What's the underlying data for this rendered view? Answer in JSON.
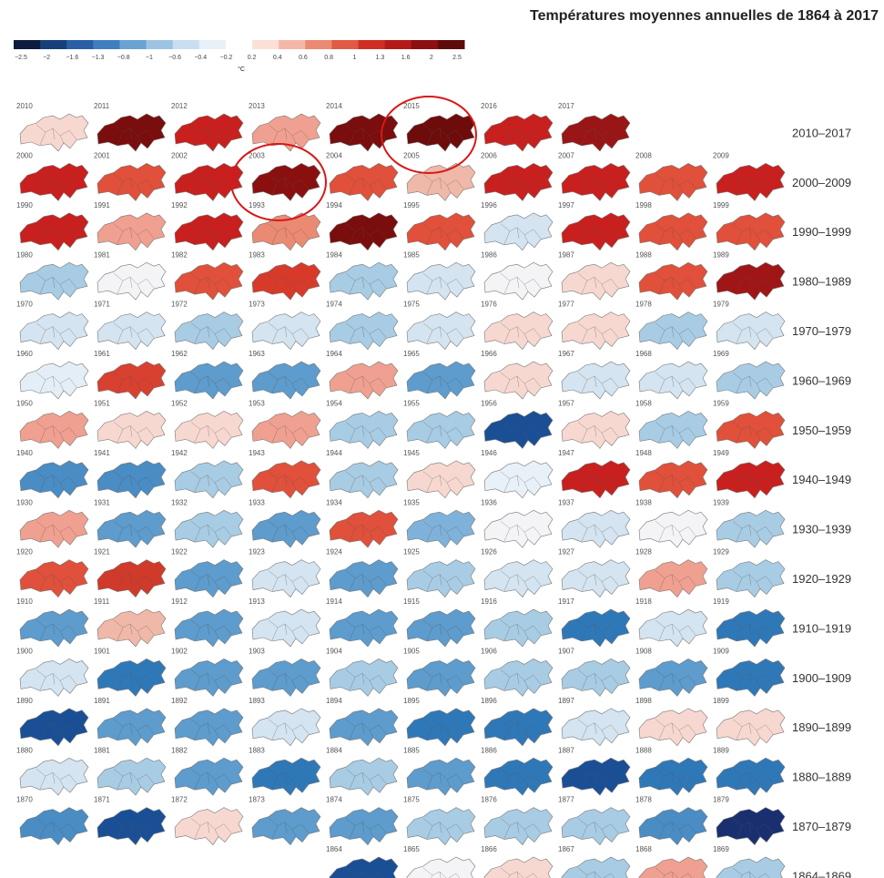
{
  "title": "Températures moyennes annuelles de 1864 à 2017",
  "legend": {
    "labels": [
      "−2.5",
      "−2",
      "−1.6",
      "−1.3",
      "−0.8",
      "−1",
      "−0.6",
      "−0.4",
      "−0.2",
      "0.2",
      "0.4",
      "0.6",
      "0.8",
      "1",
      "1.3",
      "1.6",
      "2",
      "2.5"
    ],
    "colors": [
      "#0d1b3e",
      "#173f7a",
      "#2a5fa6",
      "#3f7fc0",
      "#6aa3d2",
      "#9cc4e2",
      "#c9def0",
      "#e8f0f8",
      "#ffffff",
      "#fbe0d8",
      "#f4b8a8",
      "#eb8a73",
      "#e05a45",
      "#cf2e25",
      "#b51a1a",
      "#8c1010",
      "#5e0a0a"
    ],
    "unit": "°C"
  },
  "rows": [
    {
      "label": "2010–2017",
      "years": [
        {
          "year": "2010",
          "color": "#f7d8d0"
        },
        {
          "year": "2011",
          "color": "#7a0d0d"
        },
        {
          "year": "2012",
          "color": "#c8201e"
        },
        {
          "year": "2013",
          "color": "#f0a090"
        },
        {
          "year": "2014",
          "color": "#7a0d0d"
        },
        {
          "year": "2015",
          "color": "#6e0b0b"
        },
        {
          "year": "2016",
          "color": "#c8201e"
        },
        {
          "year": "2017",
          "color": "#9a1515"
        }
      ]
    },
    {
      "label": "2000–2009",
      "years": [
        {
          "year": "2000",
          "color": "#c8201e"
        },
        {
          "year": "2001",
          "color": "#e0503a"
        },
        {
          "year": "2002",
          "color": "#c8201e"
        },
        {
          "year": "2003",
          "color": "#8a1010"
        },
        {
          "year": "2004",
          "color": "#e0503a"
        },
        {
          "year": "2005",
          "color": "#f0b8a8"
        },
        {
          "year": "2006",
          "color": "#c8201e"
        },
        {
          "year": "2007",
          "color": "#c8201e"
        },
        {
          "year": "2008",
          "color": "#e0503a"
        },
        {
          "year": "2009",
          "color": "#c8201e"
        }
      ]
    },
    {
      "label": "1990–1999",
      "years": [
        {
          "year": "1990",
          "color": "#c8201e"
        },
        {
          "year": "1991",
          "color": "#f0a090"
        },
        {
          "year": "1992",
          "color": "#c8201e"
        },
        {
          "year": "1993",
          "color": "#eb8a73"
        },
        {
          "year": "1994",
          "color": "#7a0d0d"
        },
        {
          "year": "1995",
          "color": "#e0503a"
        },
        {
          "year": "1996",
          "color": "#d4e4f0"
        },
        {
          "year": "1997",
          "color": "#c8201e"
        },
        {
          "year": "1998",
          "color": "#e0503a"
        },
        {
          "year": "1999",
          "color": "#e0503a"
        }
      ]
    },
    {
      "label": "1980–1989",
      "years": [
        {
          "year": "1980",
          "color": "#a8cce4"
        },
        {
          "year": "1981",
          "color": "#f4f4f6"
        },
        {
          "year": "1982",
          "color": "#e0503a"
        },
        {
          "year": "1983",
          "color": "#d83a2a"
        },
        {
          "year": "1984",
          "color": "#a8cce4"
        },
        {
          "year": "1985",
          "color": "#d4e4f0"
        },
        {
          "year": "1986",
          "color": "#f4f4f6"
        },
        {
          "year": "1987",
          "color": "#f7d8d0"
        },
        {
          "year": "1988",
          "color": "#e0503a"
        },
        {
          "year": "1989",
          "color": "#a01515"
        }
      ]
    },
    {
      "label": "1970–1979",
      "years": [
        {
          "year": "1970",
          "color": "#d4e4f0"
        },
        {
          "year": "1971",
          "color": "#d4e4f0"
        },
        {
          "year": "1972",
          "color": "#a8cce4"
        },
        {
          "year": "1973",
          "color": "#d4e4f0"
        },
        {
          "year": "1974",
          "color": "#a8cce4"
        },
        {
          "year": "1975",
          "color": "#d4e4f0"
        },
        {
          "year": "1976",
          "color": "#f7d8d0"
        },
        {
          "year": "1977",
          "color": "#f7d8d0"
        },
        {
          "year": "1978",
          "color": "#a8cce4"
        },
        {
          "year": "1979",
          "color": "#d4e4f0"
        }
      ]
    },
    {
      "label": "1960–1969",
      "years": [
        {
          "year": "1960",
          "color": "#e4eef6"
        },
        {
          "year": "1961",
          "color": "#d84030"
        },
        {
          "year": "1962",
          "color": "#5d9ccc"
        },
        {
          "year": "1963",
          "color": "#5d9ccc"
        },
        {
          "year": "1964",
          "color": "#f0a090"
        },
        {
          "year": "1965",
          "color": "#5d9ccc"
        },
        {
          "year": "1966",
          "color": "#f7d8d0"
        },
        {
          "year": "1967",
          "color": "#d4e4f0"
        },
        {
          "year": "1968",
          "color": "#d4e4f0"
        },
        {
          "year": "1969",
          "color": "#a8cce4"
        }
      ]
    },
    {
      "label": "1950–1959",
      "years": [
        {
          "year": "1950",
          "color": "#f0a090"
        },
        {
          "year": "1951",
          "color": "#f7d8d0"
        },
        {
          "year": "1952",
          "color": "#f7d8d0"
        },
        {
          "year": "1953",
          "color": "#f0a090"
        },
        {
          "year": "1954",
          "color": "#a8cce4"
        },
        {
          "year": "1955",
          "color": "#a8cce4"
        },
        {
          "year": "1956",
          "color": "#1a4f96"
        },
        {
          "year": "1957",
          "color": "#f7d8d0"
        },
        {
          "year": "1958",
          "color": "#a8cce4"
        },
        {
          "year": "1959",
          "color": "#e0503a"
        }
      ]
    },
    {
      "label": "1940–1949",
      "years": [
        {
          "year": "1940",
          "color": "#4a8cc4"
        },
        {
          "year": "1941",
          "color": "#4a8cc4"
        },
        {
          "year": "1942",
          "color": "#a8cce4"
        },
        {
          "year": "1943",
          "color": "#e0503a"
        },
        {
          "year": "1944",
          "color": "#a8cce4"
        },
        {
          "year": "1945",
          "color": "#f7d8d0"
        },
        {
          "year": "1946",
          "color": "#e8f0f8"
        },
        {
          "year": "1947",
          "color": "#c8201e"
        },
        {
          "year": "1948",
          "color": "#e0503a"
        },
        {
          "year": "1949",
          "color": "#c8201e"
        }
      ]
    },
    {
      "label": "1930–1939",
      "years": [
        {
          "year": "1930",
          "color": "#f0a090"
        },
        {
          "year": "1931",
          "color": "#5d9ccc"
        },
        {
          "year": "1932",
          "color": "#a8cce4"
        },
        {
          "year": "1933",
          "color": "#5d9ccc"
        },
        {
          "year": "1934",
          "color": "#e0503a"
        },
        {
          "year": "1935",
          "color": "#7fb2da"
        },
        {
          "year": "1936",
          "color": "#f4f4f6"
        },
        {
          "year": "1937",
          "color": "#d4e4f0"
        },
        {
          "year": "1938",
          "color": "#f4f4f6"
        },
        {
          "year": "1939",
          "color": "#a8cce4"
        }
      ]
    },
    {
      "label": "1920–1929",
      "years": [
        {
          "year": "1920",
          "color": "#e0503a"
        },
        {
          "year": "1921",
          "color": "#d03a2a"
        },
        {
          "year": "1922",
          "color": "#5d9ccc"
        },
        {
          "year": "1923",
          "color": "#d4e4f0"
        },
        {
          "year": "1924",
          "color": "#5d9ccc"
        },
        {
          "year": "1925",
          "color": "#a8cce4"
        },
        {
          "year": "1926",
          "color": "#d4e4f0"
        },
        {
          "year": "1927",
          "color": "#d4e4f0"
        },
        {
          "year": "1928",
          "color": "#f0a090"
        },
        {
          "year": "1929",
          "color": "#a8cce4"
        }
      ]
    },
    {
      "label": "1910–1919",
      "years": [
        {
          "year": "1910",
          "color": "#5d9ccc"
        },
        {
          "year": "1911",
          "color": "#f0b8a8"
        },
        {
          "year": "1912",
          "color": "#5d9ccc"
        },
        {
          "year": "1913",
          "color": "#d4e4f0"
        },
        {
          "year": "1914",
          "color": "#5d9ccc"
        },
        {
          "year": "1915",
          "color": "#5d9ccc"
        },
        {
          "year": "1916",
          "color": "#a8cce4"
        },
        {
          "year": "1917",
          "color": "#2f78b8"
        },
        {
          "year": "1918",
          "color": "#d4e4f0"
        },
        {
          "year": "1919",
          "color": "#2f78b8"
        }
      ]
    },
    {
      "label": "1900–1909",
      "years": [
        {
          "year": "1900",
          "color": "#d4e4f0"
        },
        {
          "year": "1901",
          "color": "#2f78b8"
        },
        {
          "year": "1902",
          "color": "#5d9ccc"
        },
        {
          "year": "1903",
          "color": "#5d9ccc"
        },
        {
          "year": "1904",
          "color": "#a8cce4"
        },
        {
          "year": "1905",
          "color": "#5d9ccc"
        },
        {
          "year": "1906",
          "color": "#a8cce4"
        },
        {
          "year": "1907",
          "color": "#a8cce4"
        },
        {
          "year": "1908",
          "color": "#5d9ccc"
        },
        {
          "year": "1909",
          "color": "#2f78b8"
        }
      ]
    },
    {
      "label": "1890–1899",
      "years": [
        {
          "year": "1890",
          "color": "#1a4f96"
        },
        {
          "year": "1891",
          "color": "#5d9ccc"
        },
        {
          "year": "1892",
          "color": "#5d9ccc"
        },
        {
          "year": "1893",
          "color": "#d4e4f0"
        },
        {
          "year": "1894",
          "color": "#5d9ccc"
        },
        {
          "year": "1895",
          "color": "#2f78b8"
        },
        {
          "year": "1896",
          "color": "#2f78b8"
        },
        {
          "year": "1897",
          "color": "#d4e4f0"
        },
        {
          "year": "1898",
          "color": "#f7d8d0"
        },
        {
          "year": "1899",
          "color": "#f7d8d0"
        }
      ]
    },
    {
      "label": "1880–1889",
      "years": [
        {
          "year": "1880",
          "color": "#d4e4f0"
        },
        {
          "year": "1881",
          "color": "#a8cce4"
        },
        {
          "year": "1882",
          "color": "#5d9ccc"
        },
        {
          "year": "1883",
          "color": "#2f78b8"
        },
        {
          "year": "1884",
          "color": "#a8cce4"
        },
        {
          "year": "1885",
          "color": "#5d9ccc"
        },
        {
          "year": "1886",
          "color": "#2f78b8"
        },
        {
          "year": "1887",
          "color": "#1a4f96"
        },
        {
          "year": "1888",
          "color": "#2f78b8"
        },
        {
          "year": "1889",
          "color": "#2f78b8"
        }
      ]
    },
    {
      "label": "1870–1879",
      "years": [
        {
          "year": "1870",
          "color": "#4a8cc4"
        },
        {
          "year": "1871",
          "color": "#1a4f96"
        },
        {
          "year": "1872",
          "color": "#f7d8d0"
        },
        {
          "year": "1873",
          "color": "#5d9ccc"
        },
        {
          "year": "1874",
          "color": "#5d9ccc"
        },
        {
          "year": "1875",
          "color": "#a8cce4"
        },
        {
          "year": "1876",
          "color": "#a8cce4"
        },
        {
          "year": "1877",
          "color": "#a8cce4"
        },
        {
          "year": "1878",
          "color": "#4a8cc4"
        },
        {
          "year": "1879",
          "color": "#1a2f70"
        }
      ]
    },
    {
      "label": "1864–1869",
      "years": [
        {
          "year": "1864",
          "color": "#1a4f96"
        },
        {
          "year": "1865",
          "color": "#f4f4f6"
        },
        {
          "year": "1866",
          "color": "#f7d8d0"
        },
        {
          "year": "1867",
          "color": "#a8cce4"
        },
        {
          "year": "1868",
          "color": "#f0a090"
        },
        {
          "year": "1869",
          "color": "#a8cce4"
        }
      ]
    }
  ]
}
